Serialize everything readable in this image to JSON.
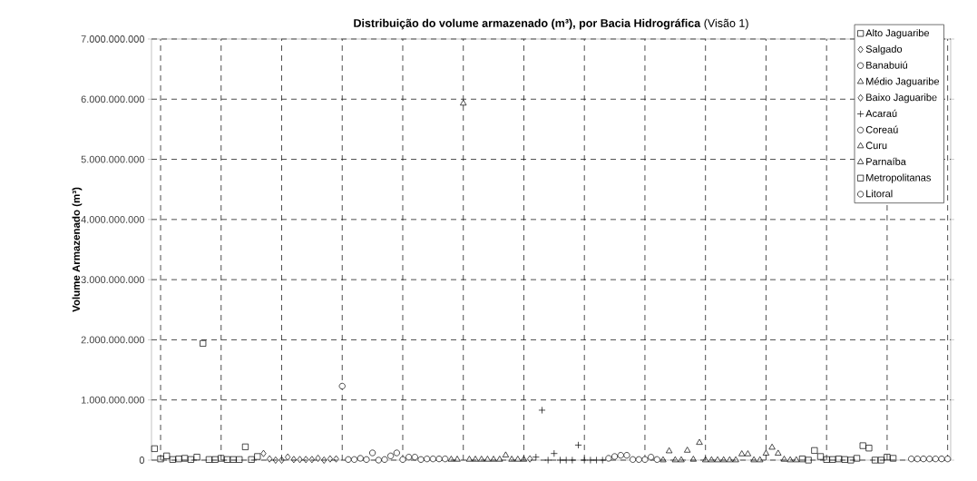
{
  "chart_data": {
    "type": "scatter",
    "title": "**Distribuição do volume armazenado (m³), por Bacia Hidrográfica** (Visão 1)",
    "ylabel": "Volume Armazenado (m³)",
    "categories": [
      null,
      null,
      null,
      null,
      null,
      null,
      null,
      null,
      null,
      null,
      null,
      null,
      null,
      null,
      null,
      null,
      null,
      null,
      null,
      null,
      null,
      null,
      null,
      null,
      null,
      null,
      null,
      null,
      null,
      null,
      null,
      null,
      null,
      null,
      null,
      null,
      null,
      null,
      null,
      null,
      null,
      null,
      null,
      null,
      null,
      null,
      null,
      null,
      null,
      null,
      null,
      null,
      null,
      null,
      null,
      null,
      null,
      null,
      null,
      null,
      null,
      null,
      null,
      null,
      null,
      null,
      null,
      null,
      null,
      null,
      null,
      null,
      null,
      null,
      null,
      null,
      null,
      null,
      null,
      null,
      null,
      null,
      null,
      null,
      null,
      null,
      null,
      null,
      null,
      null,
      null,
      null,
      null,
      null,
      null,
      null,
      null,
      null,
      null,
      null,
      null,
      null,
      null,
      null,
      null,
      null,
      null,
      null,
      null,
      null,
      null,
      null,
      null,
      null,
      null,
      null,
      null,
      null,
      null,
      null,
      null,
      null,
      null,
      null,
      null,
      null,
      null,
      null,
      null,
      null,
      null,
      null
    ],
    "ylim": [
      0,
      7000000000
    ],
    "yticks": [
      {
        "value": 0,
        "label": "0"
      },
      {
        "value": 1000000000,
        "label": "1.000.000.000"
      },
      {
        "value": 2000000000,
        "label": "2.000.000.000"
      },
      {
        "value": 3000000000,
        "label": "3.000.000.000"
      },
      {
        "value": 4000000000,
        "label": "4.000.000.000"
      },
      {
        "value": 5000000000,
        "label": "5.000.000.000"
      },
      {
        "value": 6000000000,
        "label": "6.000.000.000"
      },
      {
        "value": 7000000000,
        "label": "7.000.000.000"
      }
    ],
    "tick_labels": "y",
    "grid": true,
    "legend": "top right",
    "series": [
      {
        "name": "Alto Jaguaribe",
        "color": "#000000",
        "marker": "square",
        "values": [
          190000000,
          20000000,
          70000000,
          10000000,
          20000000,
          30000000,
          10000000,
          50000000,
          1940000000,
          10000000,
          10000000,
          30000000,
          10000000,
          10000000,
          10000000,
          220000000,
          10000000,
          60000000,
          null,
          null,
          null,
          null,
          null,
          null,
          null,
          null,
          null,
          null,
          null,
          null,
          null,
          null,
          null,
          null,
          null,
          null,
          null,
          null,
          null,
          null,
          null,
          null,
          null,
          null,
          null,
          null,
          null,
          null,
          null,
          null,
          null,
          null,
          null,
          null,
          null,
          null,
          null,
          null,
          null,
          null,
          null,
          null,
          null,
          null,
          null,
          null,
          null,
          null,
          null,
          null,
          null,
          null,
          null,
          null,
          null,
          null,
          null,
          null,
          null,
          null,
          null,
          null,
          null,
          null,
          null,
          null,
          null,
          null,
          null,
          null,
          null,
          null,
          null,
          null,
          null,
          null,
          null,
          null,
          null,
          null,
          null,
          null,
          null,
          null,
          null,
          null,
          null,
          null,
          null,
          null,
          null,
          null,
          null,
          null,
          null,
          null,
          null,
          null,
          null,
          null,
          null,
          null,
          null,
          null,
          null,
          null,
          null,
          null,
          null,
          null,
          null,
          null
        ]
      },
      {
        "name": "Salgado",
        "color": "#000000",
        "marker": "diamond",
        "values": [
          null,
          null,
          null,
          null,
          null,
          null,
          null,
          null,
          null,
          null,
          null,
          null,
          null,
          null,
          null,
          null,
          null,
          null,
          110000000,
          20000000,
          0,
          0,
          50000000,
          10000000,
          10000000,
          10000000,
          10000000,
          30000000,
          0,
          20000000,
          20000000,
          null,
          null,
          null,
          null,
          null,
          null,
          null,
          null,
          null,
          null,
          null,
          null,
          null,
          null,
          null,
          null,
          null,
          null,
          null,
          null,
          null,
          null,
          null,
          null,
          null,
          null,
          null,
          null,
          null,
          null,
          null,
          null,
          null,
          null,
          null,
          null,
          null,
          null,
          null,
          null,
          null,
          null,
          null,
          null,
          null,
          null,
          null,
          null,
          null,
          null,
          null,
          null,
          null,
          null,
          null,
          null,
          null,
          null,
          null,
          null,
          null,
          null,
          null,
          null,
          null,
          null,
          null,
          null,
          null,
          null,
          null,
          null,
          null,
          null,
          null,
          null,
          null,
          null,
          null,
          null,
          null,
          null,
          null,
          null,
          null,
          null,
          null,
          null,
          null,
          null,
          null,
          null,
          null,
          null,
          null,
          null,
          null,
          null,
          null,
          null,
          null
        ]
      },
      {
        "name": "Banabuiú",
        "color": "#000000",
        "marker": "circle",
        "values": [
          null,
          null,
          null,
          null,
          null,
          null,
          null,
          null,
          null,
          null,
          null,
          null,
          null,
          null,
          null,
          null,
          null,
          null,
          null,
          null,
          null,
          null,
          null,
          null,
          null,
          null,
          null,
          null,
          null,
          null,
          null,
          1230000000,
          10000000,
          10000000,
          30000000,
          10000000,
          120000000,
          0,
          10000000,
          70000000,
          120000000,
          10000000,
          50000000,
          50000000,
          10000000,
          20000000,
          20000000,
          20000000,
          20000000,
          null,
          null,
          null,
          null,
          null,
          null,
          null,
          null,
          null,
          null,
          null,
          null,
          null,
          null,
          null,
          null,
          null,
          null,
          null,
          null,
          null,
          null,
          null,
          null,
          null,
          null,
          null,
          null,
          null,
          null,
          null,
          null,
          null,
          null,
          null,
          null,
          null,
          null,
          null,
          null,
          null,
          null,
          null,
          null,
          null,
          null,
          null,
          null,
          null,
          null,
          null,
          null,
          null,
          null,
          null,
          null,
          null,
          null,
          null,
          null,
          null,
          null,
          null,
          null,
          null,
          null,
          null,
          null,
          null,
          null,
          null,
          null,
          null,
          null,
          null,
          null,
          null,
          null,
          null,
          null,
          null,
          null,
          null
        ]
      },
      {
        "name": "Médio Jaguaribe",
        "color": "#000000",
        "marker": "triangle",
        "values": [
          null,
          null,
          null,
          null,
          null,
          null,
          null,
          null,
          null,
          null,
          null,
          null,
          null,
          null,
          null,
          null,
          null,
          null,
          null,
          null,
          null,
          null,
          null,
          null,
          null,
          null,
          null,
          null,
          null,
          null,
          null,
          null,
          null,
          null,
          null,
          null,
          null,
          null,
          null,
          null,
          null,
          null,
          null,
          null,
          null,
          null,
          null,
          null,
          null,
          10000000,
          10000000,
          5930000000,
          10000000,
          10000000,
          10000000,
          10000000,
          10000000,
          10000000,
          80000000,
          10000000,
          10000000,
          10000000,
          null,
          null,
          null,
          null,
          null,
          null,
          null,
          null,
          null,
          null,
          null,
          null,
          null,
          null,
          null,
          null,
          null,
          null,
          null,
          null,
          null,
          null,
          null,
          null,
          null,
          null,
          null,
          null,
          null,
          null,
          null,
          null,
          null,
          null,
          null,
          null,
          null,
          null,
          null,
          null,
          null,
          null,
          null,
          null,
          null,
          null,
          null,
          null,
          null,
          null,
          null,
          null,
          null,
          null,
          null,
          null,
          null,
          null,
          null,
          null,
          null,
          null,
          null,
          null,
          null,
          null,
          null,
          null,
          null,
          null
        ]
      },
      {
        "name": "Baixo Jaguaribe",
        "color": "#000000",
        "marker": "diamond",
        "values": [
          null,
          null,
          null,
          null,
          null,
          null,
          null,
          null,
          null,
          null,
          null,
          null,
          null,
          null,
          null,
          null,
          null,
          null,
          null,
          null,
          null,
          null,
          null,
          null,
          null,
          null,
          null,
          null,
          null,
          null,
          null,
          null,
          null,
          null,
          null,
          null,
          null,
          null,
          null,
          null,
          null,
          null,
          null,
          null,
          null,
          null,
          null,
          null,
          null,
          null,
          null,
          null,
          null,
          null,
          null,
          null,
          null,
          null,
          null,
          null,
          null,
          null,
          20000000,
          null,
          null,
          null,
          null,
          null,
          null,
          null,
          null,
          null,
          null,
          null,
          null,
          null,
          null,
          null,
          null,
          null,
          null,
          null,
          null,
          null,
          null,
          null,
          null,
          null,
          null,
          null,
          null,
          null,
          null,
          null,
          null,
          null,
          null,
          null,
          null,
          null,
          null,
          null,
          null,
          null,
          null,
          null,
          null,
          null,
          null,
          null,
          null,
          null,
          null,
          null,
          null,
          null,
          null,
          null,
          null,
          null,
          null,
          null,
          null,
          null,
          null,
          null,
          null,
          null,
          null,
          null,
          null,
          null
        ]
      },
      {
        "name": "Acaraú",
        "color": "#000000",
        "marker": "cross",
        "values": [
          null,
          null,
          null,
          null,
          null,
          null,
          null,
          null,
          null,
          null,
          null,
          null,
          null,
          null,
          null,
          null,
          null,
          null,
          null,
          null,
          null,
          null,
          null,
          null,
          null,
          null,
          null,
          null,
          null,
          null,
          null,
          null,
          null,
          null,
          null,
          null,
          null,
          null,
          null,
          null,
          null,
          null,
          null,
          null,
          null,
          null,
          null,
          null,
          null,
          null,
          null,
          null,
          null,
          null,
          null,
          null,
          null,
          null,
          null,
          null,
          null,
          null,
          null,
          50000000,
          830000000,
          0,
          110000000,
          0,
          0,
          0,
          250000000,
          0,
          0,
          0,
          0,
          null,
          null,
          null,
          null,
          null,
          null,
          null,
          null,
          null,
          null,
          null,
          null,
          null,
          null,
          null,
          null,
          null,
          null,
          null,
          null,
          null,
          null,
          null,
          null,
          null,
          null,
          null,
          null,
          null,
          null,
          null,
          null,
          null,
          null,
          null,
          null,
          null,
          null,
          null,
          null,
          null,
          null,
          null,
          null,
          null,
          null,
          null,
          null,
          null,
          null,
          null,
          null,
          null,
          null,
          null,
          null,
          null
        ]
      },
      {
        "name": "Coreaú",
        "color": "#000000",
        "marker": "circle",
        "values": [
          null,
          null,
          null,
          null,
          null,
          null,
          null,
          null,
          null,
          null,
          null,
          null,
          null,
          null,
          null,
          null,
          null,
          null,
          null,
          null,
          null,
          null,
          null,
          null,
          null,
          null,
          null,
          null,
          null,
          null,
          null,
          null,
          null,
          null,
          null,
          null,
          null,
          null,
          null,
          null,
          null,
          null,
          null,
          null,
          null,
          null,
          null,
          null,
          null,
          null,
          null,
          null,
          null,
          null,
          null,
          null,
          null,
          null,
          null,
          null,
          null,
          null,
          null,
          null,
          null,
          null,
          null,
          null,
          null,
          null,
          null,
          null,
          null,
          null,
          null,
          30000000,
          60000000,
          80000000,
          80000000,
          10000000,
          10000000,
          10000000,
          50000000,
          10000000,
          null,
          null,
          null,
          null,
          null,
          null,
          null,
          null,
          null,
          null,
          null,
          null,
          null,
          null,
          null,
          null,
          null,
          null,
          null,
          null,
          null,
          null,
          null,
          null,
          null,
          null,
          null,
          null,
          null,
          null,
          null,
          null,
          null,
          null,
          null,
          null,
          null,
          null,
          null,
          null,
          null,
          null,
          null,
          null,
          null,
          null,
          null,
          null
        ]
      },
      {
        "name": "Curu",
        "color": "#000000",
        "marker": "triangle",
        "values": [
          null,
          null,
          null,
          null,
          null,
          null,
          null,
          null,
          null,
          null,
          null,
          null,
          null,
          null,
          null,
          null,
          null,
          null,
          null,
          null,
          null,
          null,
          null,
          null,
          null,
          null,
          null,
          null,
          null,
          null,
          null,
          null,
          null,
          null,
          null,
          null,
          null,
          null,
          null,
          null,
          null,
          null,
          null,
          null,
          null,
          null,
          null,
          null,
          null,
          null,
          null,
          null,
          null,
          null,
          null,
          null,
          null,
          null,
          null,
          null,
          null,
          null,
          null,
          null,
          null,
          null,
          null,
          null,
          null,
          null,
          null,
          null,
          null,
          null,
          null,
          null,
          null,
          null,
          null,
          null,
          null,
          null,
          null,
          null,
          0,
          150000000,
          0,
          0,
          160000000,
          10000000,
          290000000,
          0,
          0,
          0,
          0,
          0,
          0,
          null,
          null,
          null,
          null,
          null,
          null,
          null,
          null,
          null,
          null,
          null,
          null,
          null,
          null,
          null,
          null,
          null,
          null,
          null,
          null,
          null,
          null,
          null,
          null,
          null,
          null,
          null,
          null,
          null,
          null,
          null,
          null,
          null,
          null,
          null
        ]
      },
      {
        "name": "Parnaíba",
        "color": "#000000",
        "marker": "triangle",
        "values": [
          null,
          null,
          null,
          null,
          null,
          null,
          null,
          null,
          null,
          null,
          null,
          null,
          null,
          null,
          null,
          null,
          null,
          null,
          null,
          null,
          null,
          null,
          null,
          null,
          null,
          null,
          null,
          null,
          null,
          null,
          null,
          null,
          null,
          null,
          null,
          null,
          null,
          null,
          null,
          null,
          null,
          null,
          null,
          null,
          null,
          null,
          null,
          null,
          null,
          null,
          null,
          null,
          null,
          null,
          null,
          null,
          null,
          null,
          null,
          null,
          null,
          null,
          null,
          null,
          null,
          null,
          null,
          null,
          null,
          null,
          null,
          null,
          null,
          null,
          null,
          null,
          null,
          null,
          null,
          null,
          null,
          null,
          null,
          null,
          null,
          null,
          null,
          null,
          null,
          null,
          null,
          null,
          null,
          null,
          null,
          null,
          null,
          100000000,
          100000000,
          0,
          0,
          110000000,
          210000000,
          110000000,
          10000000,
          0,
          0,
          null,
          null,
          null,
          null,
          null,
          null,
          null,
          null,
          null,
          null,
          null,
          null,
          null,
          null,
          null,
          null,
          null,
          null,
          null,
          null,
          null,
          null,
          null,
          null,
          null
        ]
      },
      {
        "name": "Metropolitanas",
        "color": "#000000",
        "marker": "square",
        "values": [
          null,
          null,
          null,
          null,
          null,
          null,
          null,
          null,
          null,
          null,
          null,
          null,
          null,
          null,
          null,
          null,
          null,
          null,
          null,
          null,
          null,
          null,
          null,
          null,
          null,
          null,
          null,
          null,
          null,
          null,
          null,
          null,
          null,
          null,
          null,
          null,
          null,
          null,
          null,
          null,
          null,
          null,
          null,
          null,
          null,
          null,
          null,
          null,
          null,
          null,
          null,
          null,
          null,
          null,
          null,
          null,
          null,
          null,
          null,
          null,
          null,
          null,
          null,
          null,
          null,
          null,
          null,
          null,
          null,
          null,
          null,
          null,
          null,
          null,
          null,
          null,
          null,
          null,
          null,
          null,
          null,
          null,
          null,
          null,
          null,
          null,
          null,
          null,
          null,
          null,
          null,
          null,
          null,
          null,
          null,
          null,
          null,
          null,
          null,
          null,
          null,
          null,
          null,
          null,
          null,
          null,
          null,
          20000000,
          0,
          160000000,
          60000000,
          10000000,
          10000000,
          20000000,
          10000000,
          0,
          30000000,
          240000000,
          200000000,
          0,
          0,
          50000000,
          30000000,
          null,
          null,
          null,
          null,
          null,
          null,
          null,
          null,
          null
        ]
      },
      {
        "name": "Litoral",
        "color": "#000000",
        "marker": "circle",
        "values": [
          null,
          null,
          null,
          null,
          null,
          null,
          null,
          null,
          null,
          null,
          null,
          null,
          null,
          null,
          null,
          null,
          null,
          null,
          null,
          null,
          null,
          null,
          null,
          null,
          null,
          null,
          null,
          null,
          null,
          null,
          null,
          null,
          null,
          null,
          null,
          null,
          null,
          null,
          null,
          null,
          null,
          null,
          null,
          null,
          null,
          null,
          null,
          null,
          null,
          null,
          null,
          null,
          null,
          null,
          null,
          null,
          null,
          null,
          null,
          null,
          null,
          null,
          null,
          null,
          null,
          null,
          null,
          null,
          null,
          null,
          null,
          null,
          null,
          null,
          null,
          null,
          null,
          null,
          null,
          null,
          null,
          null,
          null,
          null,
          null,
          null,
          null,
          null,
          null,
          null,
          null,
          null,
          null,
          null,
          null,
          null,
          null,
          null,
          null,
          null,
          null,
          null,
          null,
          null,
          null,
          null,
          null,
          null,
          null,
          null,
          null,
          null,
          null,
          null,
          null,
          null,
          null,
          null,
          null,
          null,
          null,
          null,
          null,
          null,
          null,
          20000000,
          20000000,
          20000000,
          20000000,
          20000000,
          20000000,
          20000000
        ]
      }
    ]
  }
}
